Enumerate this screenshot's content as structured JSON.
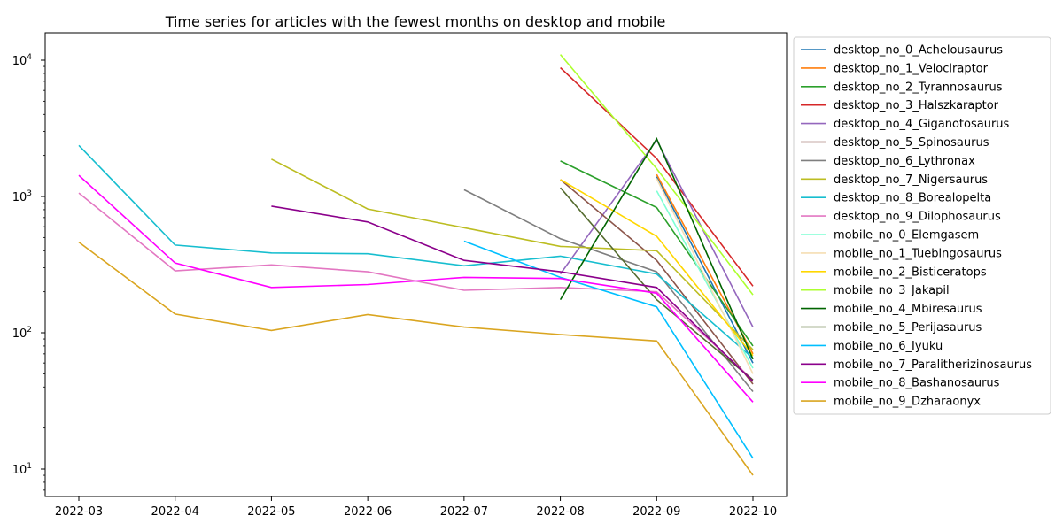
{
  "chart_data": {
    "type": "line",
    "title": "Time series for articles with the fewest months on desktop and mobile",
    "xlabel": "",
    "ylabel": "",
    "y_scale": "log",
    "ylim": [
      6.5,
      16000
    ],
    "grid": false,
    "legend_placement": "outside-right",
    "x": [
      "2022-03",
      "2022-04",
      "2022-05",
      "2022-06",
      "2022-07",
      "2022-08",
      "2022-09",
      "2022-10"
    ],
    "y_ticks": [
      {
        "value": 10,
        "base": "10",
        "exp": "1"
      },
      {
        "value": 100,
        "base": "10",
        "exp": "2"
      },
      {
        "value": 1000,
        "base": "10",
        "exp": "3"
      },
      {
        "value": 10000,
        "base": "10",
        "exp": "4"
      }
    ],
    "series": [
      {
        "name": "desktop_no_0_Achelousaurus",
        "color": "#1f77b4",
        "values": [
          null,
          null,
          null,
          null,
          null,
          null,
          1400,
          60
        ]
      },
      {
        "name": "desktop_no_1_Velociraptor",
        "color": "#ff7f0e",
        "values": [
          null,
          null,
          null,
          null,
          null,
          null,
          1450,
          70
        ]
      },
      {
        "name": "desktop_no_2_Tyrannosaurus",
        "color": "#2ca02c",
        "values": [
          null,
          null,
          null,
          null,
          null,
          1820,
          830,
          80
        ]
      },
      {
        "name": "desktop_no_3_Halszkaraptor",
        "color": "#d62728",
        "values": [
          null,
          null,
          null,
          null,
          null,
          8800,
          1900,
          220
        ]
      },
      {
        "name": "desktop_no_4_Giganotosaurus",
        "color": "#9467bd",
        "values": [
          null,
          null,
          null,
          null,
          null,
          270,
          2600,
          110
        ]
      },
      {
        "name": "desktop_no_5_Spinosaurus",
        "color": "#8c564b",
        "values": [
          null,
          null,
          null,
          null,
          null,
          1330,
          340,
          42
        ]
      },
      {
        "name": "desktop_no_6_Lythronax",
        "color": "#7f7f7f",
        "values": [
          null,
          null,
          null,
          null,
          1120,
          490,
          280,
          37
        ]
      },
      {
        "name": "desktop_no_7_Nigersaurus",
        "color": "#bcbd22",
        "values": [
          null,
          null,
          1880,
          810,
          590,
          430,
          400,
          75
        ]
      },
      {
        "name": "desktop_no_8_Borealopelta",
        "color": "#17becf",
        "values": [
          2370,
          440,
          385,
          380,
          310,
          365,
          270,
          65
        ]
      },
      {
        "name": "desktop_no_9_Dilophosaurus",
        "color": "#e377c2",
        "values": [
          1060,
          285,
          315,
          280,
          205,
          215,
          200,
          45
        ]
      },
      {
        "name": "mobile_no_0_Elemgasem",
        "color": "#7fffd4",
        "values": [
          null,
          null,
          null,
          null,
          null,
          null,
          1100,
          55
        ]
      },
      {
        "name": "mobile_no_1_Tuebingosaurus",
        "color": "#f5deb3",
        "values": [
          null,
          null,
          null,
          null,
          null,
          null,
          1350,
          50
        ]
      },
      {
        "name": "mobile_no_2_Bisticeratops",
        "color": "#ffd700",
        "values": [
          null,
          null,
          null,
          null,
          null,
          1330,
          510,
          68
        ]
      },
      {
        "name": "mobile_no_3_Jakapil",
        "color": "#adff2f",
        "values": [
          null,
          null,
          null,
          null,
          null,
          11000,
          1600,
          190
        ]
      },
      {
        "name": "mobile_no_4_Mbiresaurus",
        "color": "#006400",
        "values": [
          null,
          null,
          null,
          null,
          null,
          175,
          2650,
          64
        ]
      },
      {
        "name": "mobile_no_5_Perijasaurus",
        "color": "#556b2f",
        "values": [
          null,
          null,
          null,
          null,
          null,
          1160,
          175,
          45
        ]
      },
      {
        "name": "mobile_no_6_Iyuku",
        "color": "#00bfff",
        "values": [
          null,
          null,
          null,
          null,
          470,
          255,
          155,
          12
        ]
      },
      {
        "name": "mobile_no_7_Paralitherizinosaurus",
        "color": "#8b008b",
        "values": [
          null,
          null,
          850,
          650,
          340,
          280,
          215,
          44
        ]
      },
      {
        "name": "mobile_no_8_Bashanosaurus",
        "color": "#ff00ff",
        "values": [
          1430,
          325,
          215,
          226,
          255,
          250,
          195,
          31
        ]
      },
      {
        "name": "mobile_no_9_Dzharaonyx",
        "color": "#daa520",
        "values": [
          462,
          137,
          104,
          136,
          110,
          97,
          87,
          9
        ]
      }
    ]
  }
}
